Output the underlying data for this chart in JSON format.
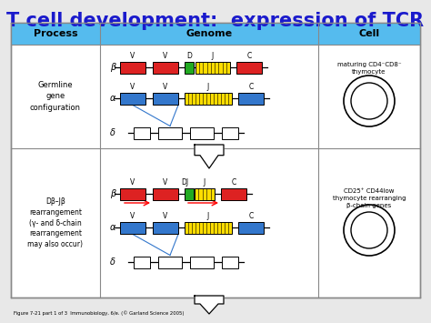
{
  "title": "T cell development:  expression of TCR",
  "title_color": "#1a1acc",
  "bg_color": "#e8e8e8",
  "header_bg": "#55bbee",
  "table_bg": "#ffffff",
  "headers": [
    "Process",
    "Genome",
    "Cell"
  ],
  "row1_process": "Germline\ngene\nconfiguration",
  "row2_process": "Dβ–Jβ\nrearrangement\n(γ- and δ-chain\nrearrangement\nmay also occur)",
  "row1_cell_text": "maturing CD4⁻CD8⁻\nthymocyte",
  "row2_cell_text": "CD25⁺ CD44low\nthymocyte rearranging\nβ-chain genes",
  "footer": "Figure 7-21 part 1 of 3  Immunobiology, 6/e. (© Garland Science 2005)",
  "red": "#dd2222",
  "blue": "#3377cc",
  "yellow": "#ffdd00",
  "green": "#22aa22",
  "white": "#ffffff",
  "outline": "#888888"
}
